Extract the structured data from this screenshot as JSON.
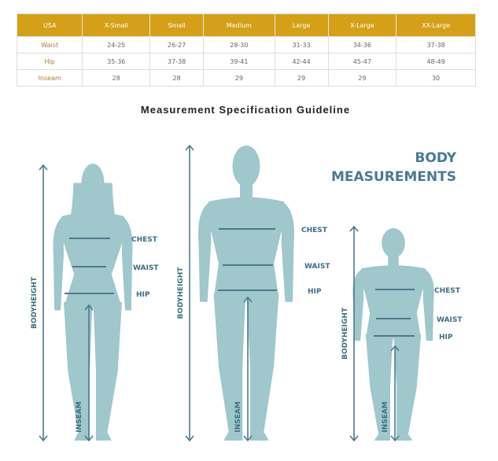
{
  "table": {
    "headers": [
      "USA",
      "X-Small",
      "Small",
      "Medium",
      "Large",
      "X-Large",
      "XX-Large"
    ],
    "rows": [
      [
        "Waist",
        "24-25",
        "26-27",
        "28-30",
        "31-33",
        "34-36",
        "37-38"
      ],
      [
        "Hip",
        "35-36",
        "37-38",
        "39-41",
        "42-44",
        "45-47",
        "48-49"
      ],
      [
        "Inseam",
        "28",
        "28",
        "29",
        "29",
        "29",
        "30"
      ]
    ]
  },
  "title": "Measurement Specification Guideline",
  "illustration": {
    "heading_line1": "BODY",
    "heading_line2": "MEASUREMENTS",
    "labels": {
      "chest": "CHEST",
      "waist": "WAIST",
      "hip": "HIP",
      "bodyheight": "BODYHEIGHT",
      "inseam": "INSEAM"
    },
    "colors": {
      "figure": "#9fc7cc",
      "line": "#4b7a8c",
      "text": "#3f6e82"
    }
  }
}
